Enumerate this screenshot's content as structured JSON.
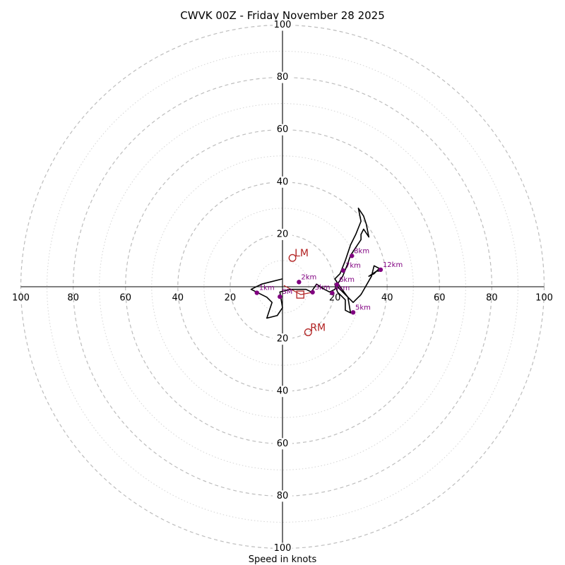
{
  "chart_data": {
    "type": "hodograph",
    "title": "CWVK 00Z - Friday November 28 2025",
    "xlabel": "Speed in knots",
    "units": "knots",
    "range": [
      -100,
      100
    ],
    "ring_major": [
      20,
      40,
      60,
      80,
      100
    ],
    "ring_minor": [
      10,
      30,
      50,
      70,
      90
    ],
    "tick_labels": {
      "x_left": [
        "100",
        "80",
        "60",
        "40",
        "20"
      ],
      "x_right": [
        "20",
        "40",
        "60",
        "80",
        "100"
      ],
      "y_top": [
        "100",
        "80",
        "60",
        "40",
        "20"
      ],
      "y_bottom": [
        "20",
        "40",
        "60",
        "80",
        "100"
      ]
    },
    "profile": [
      [
        0,
        3
      ],
      [
        -8,
        1
      ],
      [
        -12,
        -1
      ],
      [
        -6,
        -4
      ],
      [
        -4,
        -6
      ],
      [
        -6,
        -12
      ],
      [
        -2,
        -11
      ],
      [
        0,
        -8
      ],
      [
        -1,
        -2
      ],
      [
        3,
        -1
      ],
      [
        6,
        -1
      ],
      [
        9,
        -1
      ],
      [
        11,
        -2
      ],
      [
        13,
        1
      ],
      [
        16,
        -1
      ],
      [
        18,
        -2
      ],
      [
        20,
        -1
      ],
      [
        21,
        1
      ],
      [
        23,
        4
      ],
      [
        25,
        9
      ],
      [
        26,
        12
      ],
      [
        28,
        15
      ],
      [
        30,
        18
      ],
      [
        30,
        20
      ],
      [
        31,
        22
      ],
      [
        33,
        19
      ],
      [
        32,
        24
      ],
      [
        31,
        27
      ],
      [
        29,
        30
      ],
      [
        30,
        25
      ],
      [
        28,
        20
      ],
      [
        26,
        16
      ],
      [
        24,
        10
      ],
      [
        22,
        5
      ],
      [
        20,
        3
      ],
      [
        22,
        0
      ],
      [
        25,
        -4
      ],
      [
        26,
        -10
      ],
      [
        24,
        -9
      ],
      [
        24,
        -5
      ],
      [
        21,
        -2
      ],
      [
        20,
        1
      ],
      [
        27,
        -6
      ],
      [
        30,
        -3
      ],
      [
        34,
        4
      ],
      [
        35,
        8
      ],
      [
        37,
        7
      ],
      [
        35,
        5
      ],
      [
        33,
        4
      ],
      [
        36,
        6
      ],
      [
        37,
        6
      ]
    ],
    "height_markers": [
      {
        "label": "1km",
        "u": -9.8,
        "v": -2.3
      },
      {
        "label": "2km",
        "u": 6.3,
        "v": 1.8
      },
      {
        "label": "3km",
        "u": 11.5,
        "v": -2.1
      },
      {
        "label": "4km",
        "u": 19.0,
        "v": -2.4
      },
      {
        "label": "5km",
        "u": 27.0,
        "v": -9.8
      },
      {
        "label": "6km",
        "u": 20.8,
        "v": 0.8
      },
      {
        "label": "7km",
        "u": 23.2,
        "v": 6.2
      },
      {
        "label": "8km",
        "u": 26.5,
        "v": 11.8
      },
      {
        "label": "12km",
        "u": 37.5,
        "v": 6.5
      },
      {
        "label": "SM",
        "u": -1.0,
        "v": -3.8
      }
    ],
    "storm_motions": [
      {
        "label": "LM",
        "u": 3.8,
        "v": 11.0
      },
      {
        "label": "RM",
        "u": 9.8,
        "v": -17.4
      }
    ],
    "mean_wind": {
      "u": 6.8,
      "v": -3.0
    },
    "srh_vector": [
      [
        0.5,
        0.5
      ],
      [
        7.0,
        -3.0
      ],
      [
        11.0,
        -2.2
      ]
    ],
    "colors": {
      "profile": "#000000",
      "height_markers": "#800080",
      "storm_motion": "#b22222",
      "ring_major": "#bdbdbd",
      "ring_minor": "#d4d4d4"
    }
  }
}
